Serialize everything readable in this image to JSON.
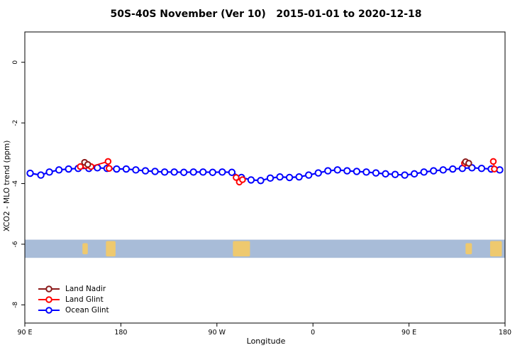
{
  "title": "50S-40S November (Ver 10)   2015-01-01 to 2020-12-18",
  "axes": {
    "x_label": "Longitude",
    "y_label": "XCO2 - MLO trend (ppm)"
  },
  "legend": {
    "items": [
      {
        "label": "Land Nadir",
        "color": "#8b1a1a"
      },
      {
        "label": "Land Glint",
        "color": "#ff0000"
      },
      {
        "label": "Ocean Glint",
        "color": "#0000ff"
      }
    ]
  },
  "chart_data": {
    "type": "scatter",
    "title": "50S-40S November (Ver 10)   2015-01-01 to 2020-12-18",
    "xlabel": "Longitude",
    "ylabel": "XCO2 - MLO trend (ppm)",
    "xlim": [
      90,
      540
    ],
    "ylim": [
      -8.6,
      1.0
    ],
    "grid": false,
    "legend_position": "bottom-left",
    "x_tick_values": [
      90,
      180,
      270,
      360,
      450,
      540
    ],
    "x_tick_labels": [
      "90 E",
      "180",
      "90 W",
      "0",
      "90 E",
      "180"
    ],
    "y_tick_values": [
      0,
      -2,
      -4,
      -6,
      -8
    ],
    "y_tick_labels": [
      "0",
      "-2",
      "-4",
      "-6",
      "-8"
    ],
    "map_band": {
      "y_top": -5.85,
      "y_bottom": -6.45,
      "ocean_color": "#a8bcd8",
      "land_color": "#eec96f",
      "land_segments": [
        [
          144,
          149
        ],
        [
          166,
          175
        ],
        [
          285,
          301
        ],
        [
          503,
          509
        ],
        [
          526,
          537
        ]
      ]
    },
    "series": [
      {
        "name": "Ocean Glint",
        "color": "#0000ff",
        "marker": "open-circle",
        "points": [
          [
            95,
            -3.66
          ],
          [
            105,
            -3.72
          ],
          [
            113,
            -3.62
          ],
          [
            122,
            -3.55
          ],
          [
            131,
            -3.52
          ],
          [
            140,
            -3.5
          ],
          [
            150,
            -3.5
          ],
          [
            158,
            -3.48
          ],
          [
            167,
            -3.5
          ],
          [
            176,
            -3.52
          ],
          [
            185,
            -3.52
          ],
          [
            194,
            -3.55
          ],
          [
            203,
            -3.58
          ],
          [
            212,
            -3.6
          ],
          [
            221,
            -3.62
          ],
          [
            230,
            -3.62
          ],
          [
            239,
            -3.63
          ],
          [
            248,
            -3.62
          ],
          [
            257,
            -3.62
          ],
          [
            266,
            -3.63
          ],
          [
            275,
            -3.62
          ],
          [
            284,
            -3.63
          ],
          [
            293,
            -3.8
          ],
          [
            302,
            -3.88
          ],
          [
            311,
            -3.9
          ],
          [
            320,
            -3.82
          ],
          [
            329,
            -3.78
          ],
          [
            338,
            -3.8
          ],
          [
            347,
            -3.78
          ],
          [
            356,
            -3.72
          ],
          [
            365,
            -3.65
          ],
          [
            374,
            -3.58
          ],
          [
            383,
            -3.55
          ],
          [
            392,
            -3.58
          ],
          [
            401,
            -3.6
          ],
          [
            410,
            -3.62
          ],
          [
            419,
            -3.65
          ],
          [
            428,
            -3.68
          ],
          [
            437,
            -3.7
          ],
          [
            446,
            -3.72
          ],
          [
            455,
            -3.68
          ],
          [
            464,
            -3.62
          ],
          [
            473,
            -3.58
          ],
          [
            482,
            -3.55
          ],
          [
            491,
            -3.52
          ],
          [
            500,
            -3.5
          ],
          [
            509,
            -3.48
          ],
          [
            518,
            -3.5
          ],
          [
            527,
            -3.52
          ],
          [
            535,
            -3.55
          ]
        ]
      },
      {
        "name": "Land Glint",
        "color": "#ff0000",
        "marker": "open-circle",
        "points": [
          [
            142,
            -3.44
          ],
          [
            147,
            -3.41
          ],
          [
            152,
            -3.44
          ],
          [
            168,
            -3.27
          ],
          [
            169,
            -3.5
          ],
          [
            288,
            -3.8
          ],
          [
            291,
            -3.95
          ],
          [
            294,
            -3.87
          ],
          [
            502,
            -3.33
          ],
          [
            529,
            -3.27
          ],
          [
            530,
            -3.52
          ]
        ]
      },
      {
        "name": "Land Nadir",
        "color": "#8b1a1a",
        "marker": "open-circle",
        "points": [
          [
            146,
            -3.3
          ],
          [
            149,
            -3.37
          ],
          [
            503,
            -3.28
          ],
          [
            506,
            -3.33
          ]
        ]
      }
    ]
  }
}
